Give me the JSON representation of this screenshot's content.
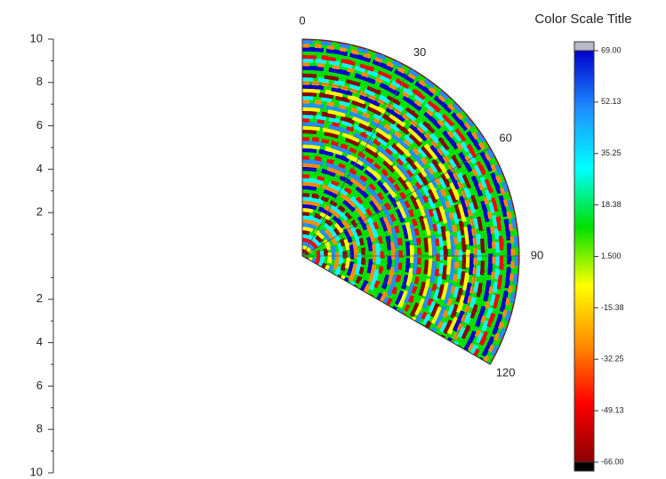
{
  "chart_data": {
    "type": "polar_contour",
    "colorbar_title": "Color Scale Title",
    "rlim": [
      0,
      10
    ],
    "rticks": [
      2,
      4,
      6,
      8,
      10
    ],
    "thetalim": [
      0,
      120
    ],
    "thetaticks": [
      0,
      30,
      60,
      90,
      120
    ],
    "zlim": [
      -66,
      69
    ],
    "zticks": [
      {
        "value": 69,
        "label": "69.00"
      },
      52.13,
      35.25,
      18.38,
      {
        "value": 1.5,
        "label": "1.500"
      },
      -15.38,
      -32.25,
      -49.13,
      {
        "value": -66,
        "label": "-66.00"
      }
    ],
    "colormap": [
      "#8b0000",
      "#ff0000",
      "#ff8c00",
      "#ffff00",
      "#00e000",
      "#00ffff",
      "#1e90ff",
      "#0000cd"
    ],
    "grid": true
  }
}
